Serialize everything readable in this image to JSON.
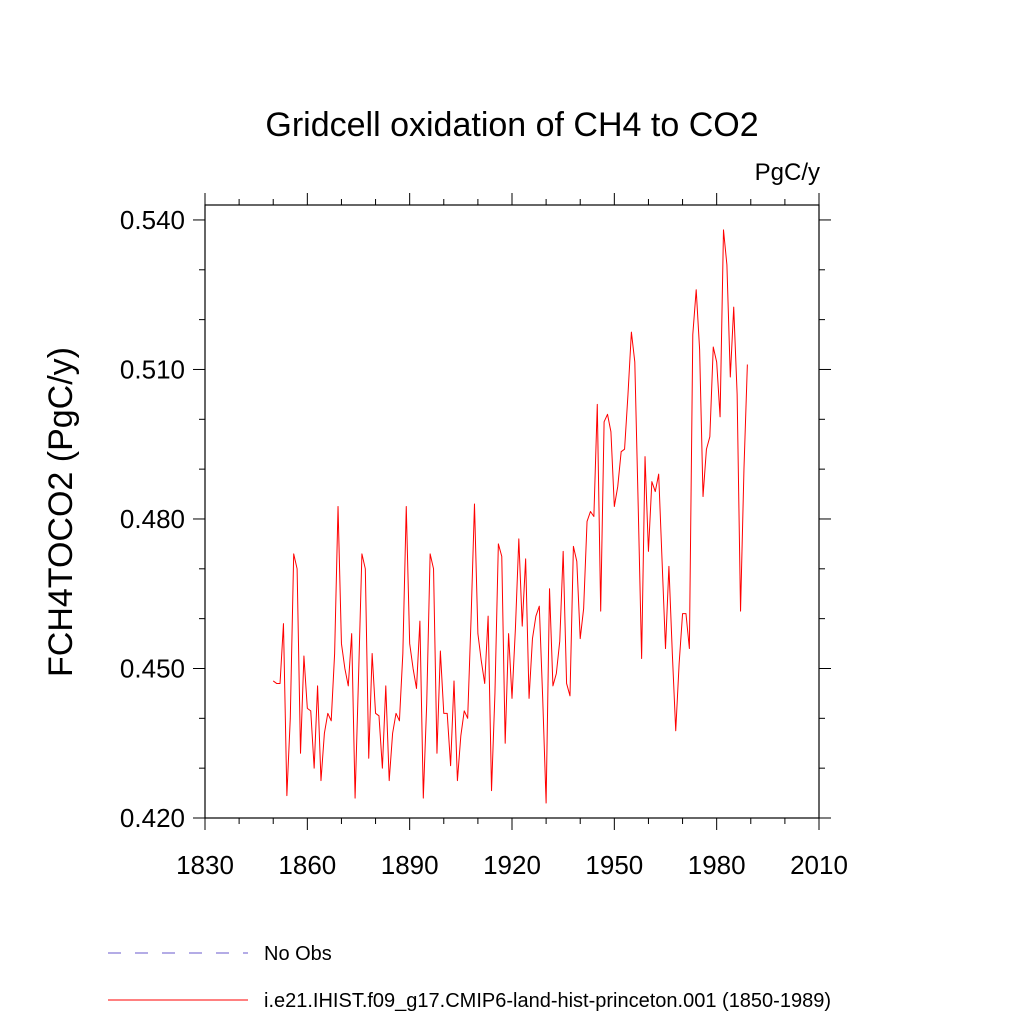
{
  "chart_data": {
    "type": "line",
    "title": "Gridcell oxidation of CH4 to CO2",
    "units": "PgC/y",
    "ylabel": "FCH4TOCO2  (PgC/y)",
    "xlabel": "",
    "xlim": [
      1830,
      2010
    ],
    "ylim": [
      0.42,
      0.543
    ],
    "x_ticks": [
      "1830",
      "1860",
      "1890",
      "1920",
      "1950",
      "1980",
      "2010"
    ],
    "y_ticks": [
      "0.420",
      "0.450",
      "0.480",
      "0.510",
      "0.540"
    ],
    "colors": {
      "model": "#ff0000",
      "obs": "#6a5acd"
    },
    "legend": {
      "placement": "bottom-left",
      "obs_label": "No Obs",
      "model_label": "i.e21.IHIST.f09_g17.CMIP6-land-hist-princeton.001 (1850-1989)"
    },
    "series": [
      {
        "name": "i.e21.IHIST.f09_g17.CMIP6-land-hist-princeton.001 (1850-1989)",
        "x": [
          1850,
          1851,
          1852,
          1853,
          1854,
          1855,
          1856,
          1857,
          1858,
          1859,
          1860,
          1861,
          1862,
          1863,
          1864,
          1865,
          1866,
          1867,
          1868,
          1869,
          1870,
          1871,
          1872,
          1873,
          1874,
          1875,
          1876,
          1877,
          1878,
          1879,
          1880,
          1881,
          1882,
          1883,
          1884,
          1885,
          1886,
          1887,
          1888,
          1889,
          1890,
          1891,
          1892,
          1893,
          1894,
          1895,
          1896,
          1897,
          1898,
          1899,
          1900,
          1901,
          1902,
          1903,
          1904,
          1905,
          1906,
          1907,
          1908,
          1909,
          1910,
          1911,
          1912,
          1913,
          1914,
          1915,
          1916,
          1917,
          1918,
          1919,
          1920,
          1921,
          1922,
          1923,
          1924,
          1925,
          1926,
          1927,
          1928,
          1929,
          1930,
          1931,
          1932,
          1933,
          1934,
          1935,
          1936,
          1937,
          1938,
          1939,
          1940,
          1941,
          1942,
          1943,
          1944,
          1945,
          1946,
          1947,
          1948,
          1949,
          1950,
          1951,
          1952,
          1953,
          1954,
          1955,
          1956,
          1957,
          1958,
          1959,
          1960,
          1961,
          1962,
          1963,
          1964,
          1965,
          1966,
          1967,
          1968,
          1969,
          1970,
          1971,
          1972,
          1973,
          1974,
          1975,
          1976,
          1977,
          1978,
          1979,
          1980,
          1981,
          1982,
          1983,
          1984,
          1985,
          1986,
          1987,
          1988,
          1989
        ],
        "values": [
          0.4475,
          0.447,
          0.447,
          0.459,
          0.4245,
          0.44,
          0.473,
          0.47,
          0.433,
          0.4525,
          0.442,
          0.4415,
          0.43,
          0.4465,
          0.4275,
          0.437,
          0.441,
          0.4395,
          0.453,
          0.4825,
          0.455,
          0.45,
          0.4465,
          0.457,
          0.424,
          0.448,
          0.473,
          0.47,
          0.432,
          0.453,
          0.441,
          0.4405,
          0.43,
          0.4465,
          0.4275,
          0.437,
          0.441,
          0.4395,
          0.453,
          0.4825,
          0.455,
          0.45,
          0.446,
          0.4595,
          0.424,
          0.443,
          0.473,
          0.47,
          0.433,
          0.4535,
          0.441,
          0.441,
          0.4305,
          0.4475,
          0.4275,
          0.4365,
          0.4415,
          0.44,
          0.46,
          0.483,
          0.457,
          0.4515,
          0.447,
          0.4605,
          0.4255,
          0.445,
          0.475,
          0.4725,
          0.435,
          0.457,
          0.444,
          0.458,
          0.476,
          0.4585,
          0.472,
          0.444,
          0.456,
          0.4605,
          0.4625,
          0.444,
          0.423,
          0.466,
          0.4465,
          0.449,
          0.4555,
          0.4735,
          0.447,
          0.4445,
          0.4745,
          0.4715,
          0.456,
          0.462,
          0.4795,
          0.4815,
          0.4805,
          0.503,
          0.4615,
          0.4995,
          0.501,
          0.4975,
          0.4825,
          0.4865,
          0.4935,
          0.494,
          0.505,
          0.5175,
          0.5115,
          0.4825,
          0.452,
          0.4925,
          0.4735,
          0.4875,
          0.4855,
          0.489,
          0.4715,
          0.454,
          0.4705,
          0.453,
          0.4375,
          0.451,
          0.461,
          0.461,
          0.454,
          0.517,
          0.526,
          0.514,
          0.4845,
          0.494,
          0.4965,
          0.5145,
          0.5115,
          0.5005,
          0.538,
          0.531,
          0.5085,
          0.5225,
          0.505,
          0.4615,
          0.49,
          0.511
        ]
      }
    ]
  }
}
